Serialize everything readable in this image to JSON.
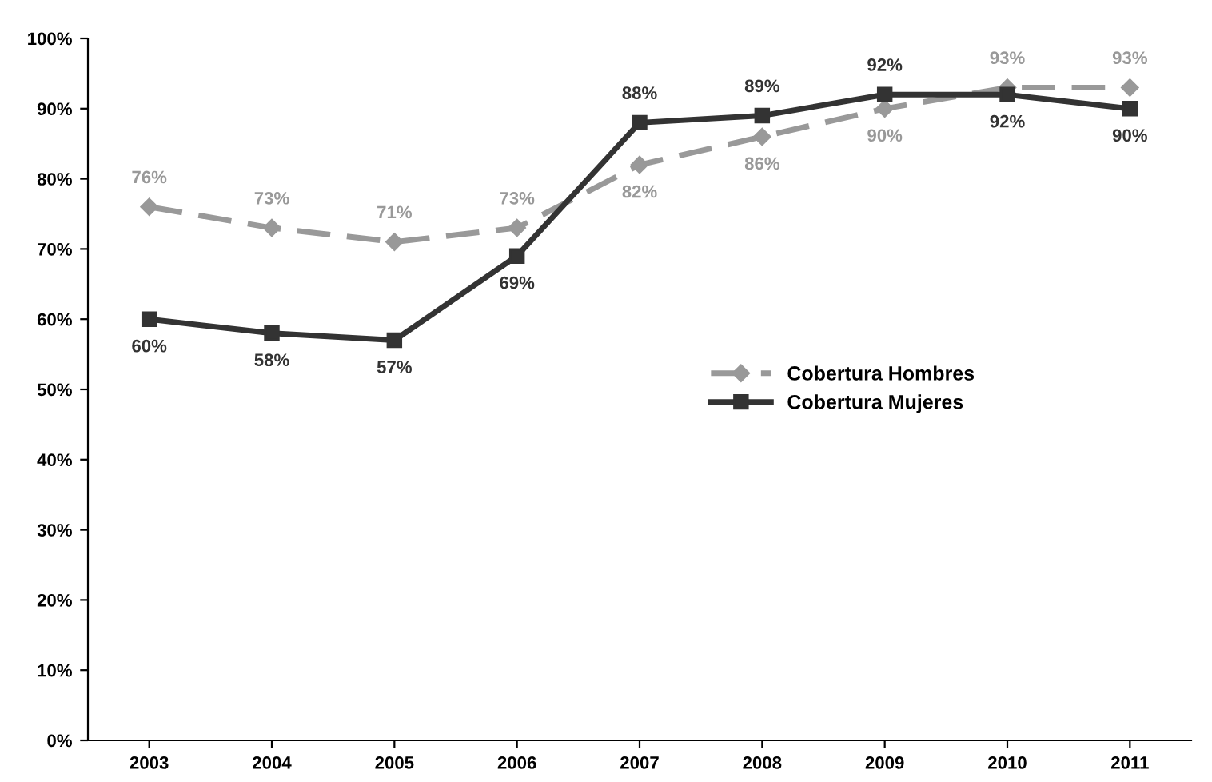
{
  "chart_data": {
    "type": "line",
    "categories": [
      "2003",
      "2004",
      "2005",
      "2006",
      "2007",
      "2008",
      "2009",
      "2010",
      "2011"
    ],
    "ylim": [
      0,
      100
    ],
    "yticks": [
      {
        "value": 0,
        "label": "0%"
      },
      {
        "value": 10,
        "label": "10%"
      },
      {
        "value": 20,
        "label": "20%"
      },
      {
        "value": 30,
        "label": "30%"
      },
      {
        "value": 40,
        "label": "40%"
      },
      {
        "value": 50,
        "label": "50%"
      },
      {
        "value": 60,
        "label": "60%"
      },
      {
        "value": 70,
        "label": "70%"
      },
      {
        "value": 80,
        "label": "80%"
      },
      {
        "value": 90,
        "label": "90%"
      },
      {
        "value": 100,
        "label": "100%"
      }
    ],
    "grid": false,
    "legend": "right",
    "series": [
      {
        "name": "Cobertura Hombres",
        "color": "#999999",
        "marker": "diamond",
        "line_style": "dashed",
        "values": [
          76,
          73,
          71,
          73,
          82,
          86,
          90,
          93,
          93
        ],
        "value_labels": [
          "76%",
          "73%",
          "71%",
          "73%",
          "82%",
          "86%",
          "90%",
          "93%",
          "93%"
        ]
      },
      {
        "name": "Cobertura Mujeres",
        "color": "#333333",
        "marker": "square",
        "line_style": "solid",
        "values": [
          60,
          58,
          57,
          69,
          88,
          89,
          92,
          92,
          90
        ],
        "value_labels": [
          "60%",
          "58%",
          "57%",
          "69%",
          "88%",
          "89%",
          "92%",
          "92%",
          "90%"
        ]
      }
    ]
  }
}
